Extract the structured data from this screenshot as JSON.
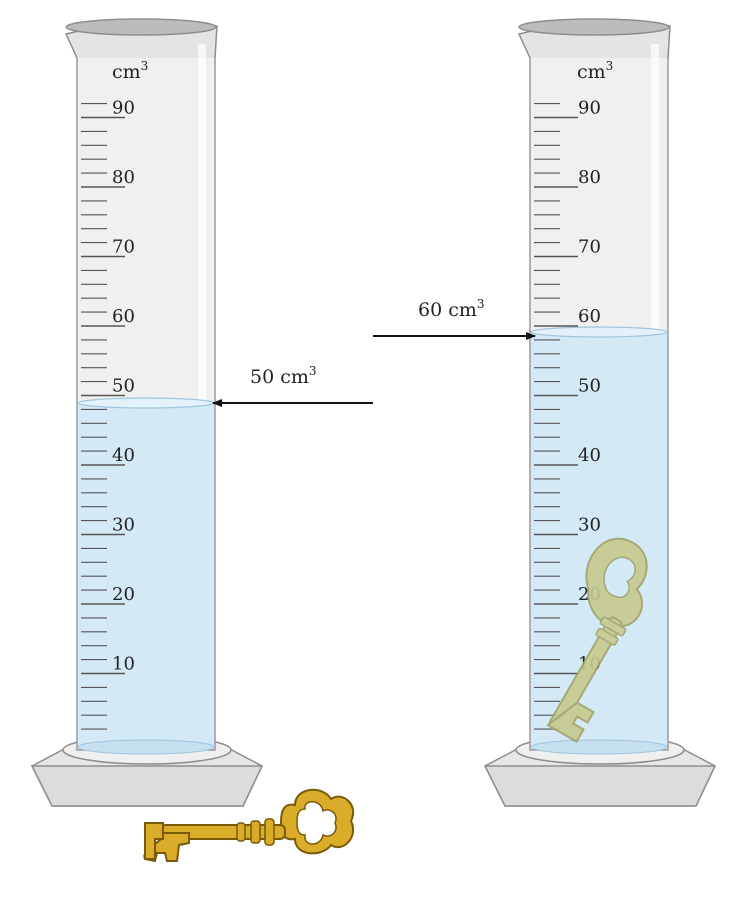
{
  "unit": "cm",
  "unit_exponent": "3",
  "scale_labels": [
    "90",
    "80",
    "70",
    "60",
    "50",
    "40",
    "30",
    "20",
    "10"
  ],
  "cylinders": [
    {
      "id": "left",
      "water_level": 50,
      "has_key_inside": false
    },
    {
      "id": "right",
      "water_level": 60,
      "has_key_inside": true
    }
  ],
  "readings": {
    "left": {
      "value": "50 cm",
      "exponent": "3"
    },
    "right": {
      "value": "60 cm",
      "exponent": "3"
    }
  },
  "colors": {
    "water": "#d3e9f6",
    "water_edge": "#9fc4dc",
    "glass": "#eeeeee",
    "glass_edge": "#9a9a9a",
    "base": "#e8e8e8",
    "key_outside": "#d9ad2a",
    "key_inside": "#c7cb8e",
    "arrow": "#111111"
  },
  "icons": [
    "graduated-cylinder-icon",
    "key-icon",
    "arrow-icon"
  ]
}
